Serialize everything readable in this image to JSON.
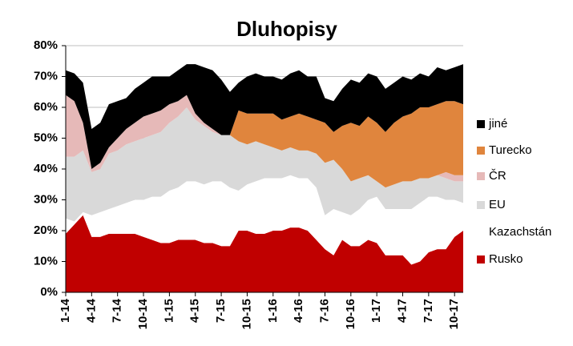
{
  "chart_data": {
    "type": "stacked_area",
    "title": "Dluhopisy",
    "categories": [
      "1-14",
      null,
      null,
      "4-14",
      null,
      null,
      "7-14",
      null,
      null,
      "10-14",
      null,
      null,
      "1-15",
      null,
      null,
      "4-15",
      null,
      null,
      "7-15",
      null,
      null,
      "10-15",
      null,
      null,
      "1-16",
      null,
      null,
      "4-16",
      null,
      null,
      "7-16",
      null,
      null,
      "10-16",
      null,
      null,
      "1-17",
      null,
      null,
      "4-17",
      null,
      null,
      "7-17",
      null,
      null,
      "10-17",
      null
    ],
    "ylim": [
      0,
      80
    ],
    "yticks": [
      {
        "value": 0,
        "label": "0%"
      },
      {
        "value": 10,
        "label": "10%"
      },
      {
        "value": 20,
        "label": "20%"
      },
      {
        "value": 30,
        "label": "30%"
      },
      {
        "value": 40,
        "label": "40%"
      },
      {
        "value": 50,
        "label": "50%"
      },
      {
        "value": 60,
        "label": "60%"
      },
      {
        "value": 70,
        "label": "70%"
      },
      {
        "value": 80,
        "label": "80%"
      }
    ],
    "grid": true,
    "legend": "right",
    "series": [
      {
        "name": "Rusko",
        "color": "#c00000",
        "values": [
          19,
          22,
          25,
          18,
          18,
          19,
          19,
          19,
          19,
          18,
          17,
          16,
          16,
          17,
          17,
          17,
          16,
          16,
          15,
          15,
          20,
          20,
          19,
          19,
          20,
          20,
          21,
          21,
          20,
          17,
          14,
          12,
          17,
          15,
          15,
          17,
          16,
          12,
          12,
          12,
          9,
          10,
          13,
          14,
          14,
          18,
          20
        ]
      },
      {
        "name": "Kazachstán",
        "color": "#ffffff",
        "values": [
          5,
          1,
          1,
          7,
          8,
          8,
          9,
          10,
          11,
          12,
          14,
          15,
          17,
          17,
          19,
          19,
          19,
          20,
          21,
          19,
          13,
          15,
          17,
          18,
          17,
          17,
          17,
          16,
          17,
          17,
          11,
          15,
          9,
          10,
          12,
          13,
          15,
          15,
          15,
          15,
          18,
          19,
          18,
          17,
          16,
          12,
          9
        ]
      },
      {
        "name": "EU",
        "color": "#d9d9d9",
        "values": [
          20,
          21,
          20,
          14,
          14,
          18,
          18,
          19,
          19,
          20,
          20,
          21,
          22,
          23,
          24,
          20,
          19,
          16,
          15,
          17,
          16,
          13,
          13,
          11,
          10,
          9,
          9,
          9,
          9,
          11,
          17,
          16,
          14,
          11,
          10,
          8,
          5,
          7,
          8,
          9,
          9,
          8,
          6,
          7,
          7,
          6,
          7
        ]
      },
      {
        "name": "ČR",
        "color": "#e6b9b8",
        "values": [
          20,
          18,
          9,
          1,
          2,
          2,
          4,
          5,
          6,
          7,
          7,
          7,
          6,
          5,
          4,
          2,
          1,
          1,
          0,
          0,
          0,
          0,
          0,
          0,
          0,
          0,
          0,
          0,
          0,
          0,
          0,
          0,
          0,
          0,
          0,
          0,
          0,
          0,
          0,
          0,
          0,
          0,
          0,
          0,
          2,
          2,
          2
        ]
      },
      {
        "name": "Turecko",
        "color": "#e0853d",
        "values": [
          0,
          0,
          0,
          0,
          0,
          0,
          0,
          0,
          0,
          0,
          0,
          0,
          0,
          0,
          0,
          0,
          0,
          0,
          0,
          0,
          10,
          10,
          9,
          10,
          11,
          10,
          10,
          12,
          11,
          11,
          13,
          9,
          14,
          19,
          17,
          19,
          19,
          18,
          20,
          21,
          22,
          23,
          23,
          23,
          23,
          24,
          23
        ]
      },
      {
        "name": "jiné",
        "color": "#000000",
        "values": [
          8,
          9,
          13,
          13,
          13,
          14,
          12,
          10,
          11,
          11,
          12,
          11,
          9,
          10,
          10,
          16,
          18,
          19,
          18,
          14,
          9,
          12,
          13,
          12,
          12,
          13,
          14,
          14,
          13,
          14,
          8,
          10,
          12,
          14,
          14,
          14,
          15,
          14,
          13,
          13,
          11,
          11,
          10,
          12,
          10,
          11,
          13
        ]
      }
    ]
  }
}
